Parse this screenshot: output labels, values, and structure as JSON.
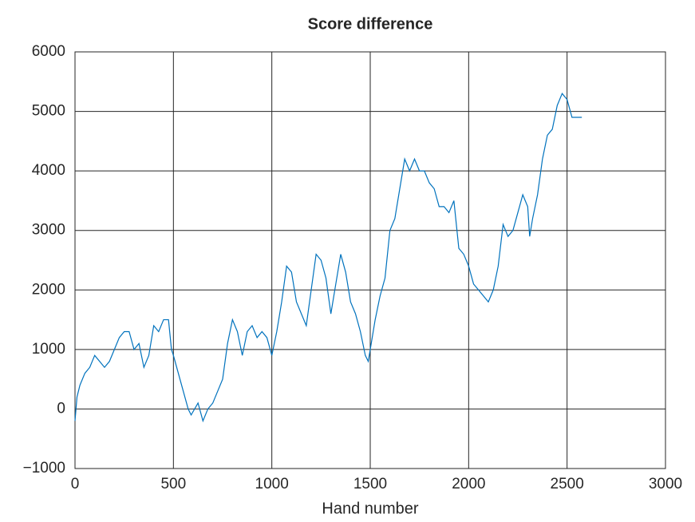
{
  "chart_data": {
    "type": "line",
    "title": "Score difference",
    "x_label": "Hand number",
    "x": [
      0,
      10,
      25,
      50,
      75,
      100,
      125,
      150,
      175,
      200,
      225,
      250,
      275,
      300,
      325,
      350,
      375,
      400,
      425,
      450,
      475,
      490,
      500,
      525,
      550,
      575,
      590,
      625,
      650,
      675,
      700,
      725,
      750,
      775,
      800,
      825,
      850,
      875,
      900,
      925,
      950,
      975,
      1000,
      1025,
      1050,
      1075,
      1100,
      1125,
      1150,
      1175,
      1200,
      1225,
      1250,
      1275,
      1300,
      1325,
      1350,
      1375,
      1400,
      1425,
      1450,
      1475,
      1490,
      1500,
      1525,
      1550,
      1575,
      1600,
      1625,
      1650,
      1675,
      1700,
      1725,
      1750,
      1775,
      1800,
      1825,
      1850,
      1875,
      1900,
      1925,
      1950,
      1975,
      2000,
      2025,
      2050,
      2075,
      2100,
      2125,
      2150,
      2175,
      2200,
      2225,
      2250,
      2275,
      2300,
      2310,
      2325,
      2350,
      2375,
      2400,
      2425,
      2450,
      2475,
      2500,
      2525,
      2550,
      2575
    ],
    "series": [
      {
        "color": "#0072bd",
        "values": [
          -200,
          200,
          400,
          600,
          700,
          900,
          800,
          700,
          800,
          1000,
          1200,
          1300,
          1300,
          1000,
          1100,
          700,
          900,
          1400,
          1300,
          1500,
          1500,
          1000,
          900,
          600,
          300,
          0,
          -100,
          100,
          -200,
          0,
          100,
          300,
          500,
          1100,
          1500,
          1300,
          900,
          1300,
          1400,
          1200,
          1300,
          1200,
          900,
          1300,
          1800,
          2400,
          2300,
          1800,
          1600,
          1400,
          2000,
          2600,
          2500,
          2200,
          1600,
          2100,
          2600,
          2300,
          1800,
          1600,
          1300,
          900,
          800,
          1000,
          1500,
          1900,
          2200,
          3000,
          3200,
          3700,
          4200,
          4000,
          4200,
          4000,
          4000,
          3800,
          3700,
          3400,
          3400,
          3300,
          3500,
          2700,
          2600,
          2400,
          2100,
          2000,
          1900,
          1800,
          2000,
          2400,
          3100,
          2900,
          3000,
          3300,
          3600,
          3400,
          2900,
          3200,
          3600,
          4200,
          4600,
          4700,
          5100,
          5300,
          5200,
          4900,
          4900,
          4900
        ]
      }
    ],
    "xlim": [
      0,
      3000
    ],
    "xticks": [
      0,
      500,
      1000,
      1500,
      2000,
      2500,
      3000
    ],
    "ylim": [
      -1000,
      6000
    ],
    "yticks": [
      {
        "value": -1000,
        "label": "−1000"
      },
      0,
      1000,
      2000,
      3000,
      4000,
      5000,
      6000
    ],
    "grid": true
  }
}
